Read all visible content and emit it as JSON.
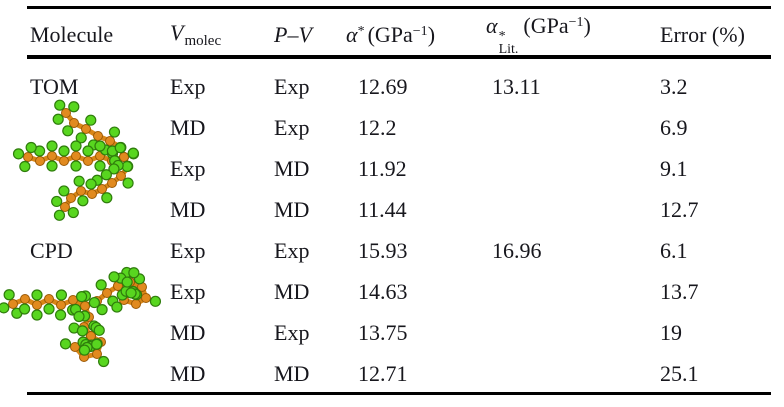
{
  "table": {
    "header": {
      "molecule": "Molecule",
      "v_main": "V",
      "v_sub": "molec",
      "pv": "P–V",
      "alpha_symbol": "α",
      "alpha_sup": "*",
      "unit_open": "(GPa",
      "unit_exp": "−1",
      "unit_close": ")",
      "alpha_lit_symbol": "α",
      "alpha_lit_sup": "*",
      "alpha_lit_sub": "Lit.",
      "error": "Error (%)"
    },
    "rows": [
      {
        "molecule": "TOM",
        "v": "Exp",
        "pv": "Exp",
        "alpha": "12.69",
        "alpha_lit": "13.11",
        "error": "3.2"
      },
      {
        "molecule": "",
        "v": "MD",
        "pv": "Exp",
        "alpha": "12.2",
        "alpha_lit": "",
        "error": "6.9"
      },
      {
        "molecule": "",
        "v": "Exp",
        "pv": "MD",
        "alpha": "11.92",
        "alpha_lit": "",
        "error": "9.1"
      },
      {
        "molecule": "",
        "v": "MD",
        "pv": "MD",
        "alpha": "11.44",
        "alpha_lit": "",
        "error": "12.7"
      },
      {
        "molecule": "CPD",
        "v": "Exp",
        "pv": "Exp",
        "alpha": "15.93",
        "alpha_lit": "16.96",
        "error": "6.1"
      },
      {
        "molecule": "",
        "v": "Exp",
        "pv": "MD",
        "alpha": "14.63",
        "alpha_lit": "",
        "error": "13.7"
      },
      {
        "molecule": "",
        "v": "MD",
        "pv": "Exp",
        "alpha": "13.75",
        "alpha_lit": "",
        "error": "19"
      },
      {
        "molecule": "",
        "v": "MD",
        "pv": "MD",
        "alpha": "12.71",
        "alpha_lit": "",
        "error": "25.1"
      }
    ]
  },
  "molecules": {
    "colors": {
      "bond": "#D98617",
      "carbon": "#E18A1F",
      "carbon_edge": "#9C5A06",
      "atom": "#58D61F",
      "atom_edge": "#2F7D0C"
    }
  },
  "page": {
    "background": "#FFFFFF",
    "text_color": "#17171D",
    "rule_color": "#000000"
  }
}
